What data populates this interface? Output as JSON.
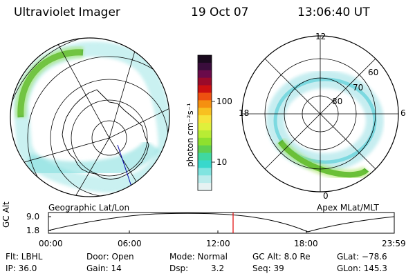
{
  "header": {
    "instrument": "Ultraviolet Imager",
    "date": "19 Oct 07",
    "time": "13:06:40 UT"
  },
  "left_map": {
    "caption": "Geographic Lat/Lon"
  },
  "right_map": {
    "caption": "Apex MLat/MLT",
    "mlt_labels": {
      "top": "12",
      "left": "18",
      "right": "6",
      "bottom": "0"
    },
    "lat_labels": [
      "60",
      "70",
      "80"
    ]
  },
  "colorbar": {
    "label": "photon cm⁻²s⁻¹",
    "ticks": [
      "100",
      "10"
    ],
    "colors": [
      "#1a0a1e",
      "#3a0d3c",
      "#6a0a4a",
      "#9a0a2a",
      "#cc1010",
      "#ee5010",
      "#f59010",
      "#f8c020",
      "#f6e33a",
      "#dff03c",
      "#b8ec34",
      "#8ee02e",
      "#5fd050",
      "#40d8a0",
      "#38d8cc",
      "#80e4e0",
      "#bbecec",
      "#e6f2f2"
    ]
  },
  "altitude_plot": {
    "ylabel": "GC Alt",
    "yticks": [
      "9.0",
      "1.8"
    ],
    "xticks": [
      "00:00",
      "06:00",
      "12:00",
      "18:00",
      "23:59"
    ],
    "marker_color": "#e00000"
  },
  "footer": {
    "filter": "Flt: LBHL",
    "door": "Door: Open",
    "mode": "Mode: Normal",
    "gc_alt": "GC Alt: 8.0 Re",
    "glat": "GLat: −78.6",
    "ip": "IP: 36.0",
    "gain": "Gain: 14",
    "dsp_label": "Dsp:",
    "dsp_value": "3.2",
    "seq": "Seq: 39",
    "glon": "GLon: 145.3"
  }
}
